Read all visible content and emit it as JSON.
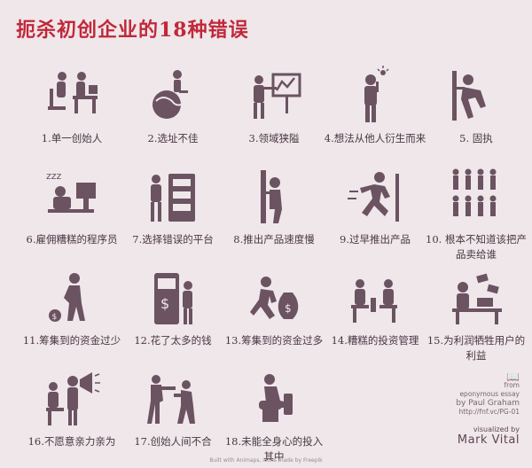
{
  "title": "扼杀初创企业的18种错误",
  "items": [
    {
      "label": "1.单一创始人",
      "icon": "office-workers-icon"
    },
    {
      "label": "2.选址不佳",
      "icon": "globe-person-icon"
    },
    {
      "label": "3.领域狭隘",
      "icon": "presenter-chart-icon"
    },
    {
      "label": "4.想法从他人衍生而来",
      "icon": "idea-person-icon"
    },
    {
      "label": "5.  固执",
      "icon": "pushing-wall-icon"
    },
    {
      "label": "6.雇佣糟糕的程序员",
      "icon": "sleeping-worker-icon"
    },
    {
      "label": "7.选择错误的平台",
      "icon": "person-server-icon"
    },
    {
      "label": "8.推出产品速度慢",
      "icon": "person-behind-door-icon"
    },
    {
      "label": "9.过早推出产品",
      "icon": "running-person-icon"
    },
    {
      "label": "10. 根本不知道该把产品卖给谁",
      "icon": "crowd-icon"
    },
    {
      "label": "11.筹集到的资金过少",
      "icon": "person-coin-icon"
    },
    {
      "label": "12.花了太多的钱",
      "icon": "atm-icon"
    },
    {
      "label": "13.筹集到的资金过多",
      "icon": "money-bag-runner-icon"
    },
    {
      "label": "14.糟糕的投资管理",
      "icon": "meeting-icon"
    },
    {
      "label": "15.为利润牺牲用户的利益",
      "icon": "money-desk-icon"
    },
    {
      "label": "16.不愿意亲力亲为",
      "icon": "megaphone-boss-icon"
    },
    {
      "label": "17.创始人间不合",
      "icon": "fighting-people-icon"
    },
    {
      "label": "18.未能全身心的投入其中",
      "icon": "toilet-person-icon"
    }
  ],
  "credits": {
    "from": "from",
    "essay": "eponymous essay",
    "by": "by Paul Graham",
    "url": "http://fnf.vc/PG-01"
  },
  "viz": {
    "by": "visualized by",
    "name": "Mark Vital"
  },
  "footer": "Built with Animaps, icons made by Freepik"
}
